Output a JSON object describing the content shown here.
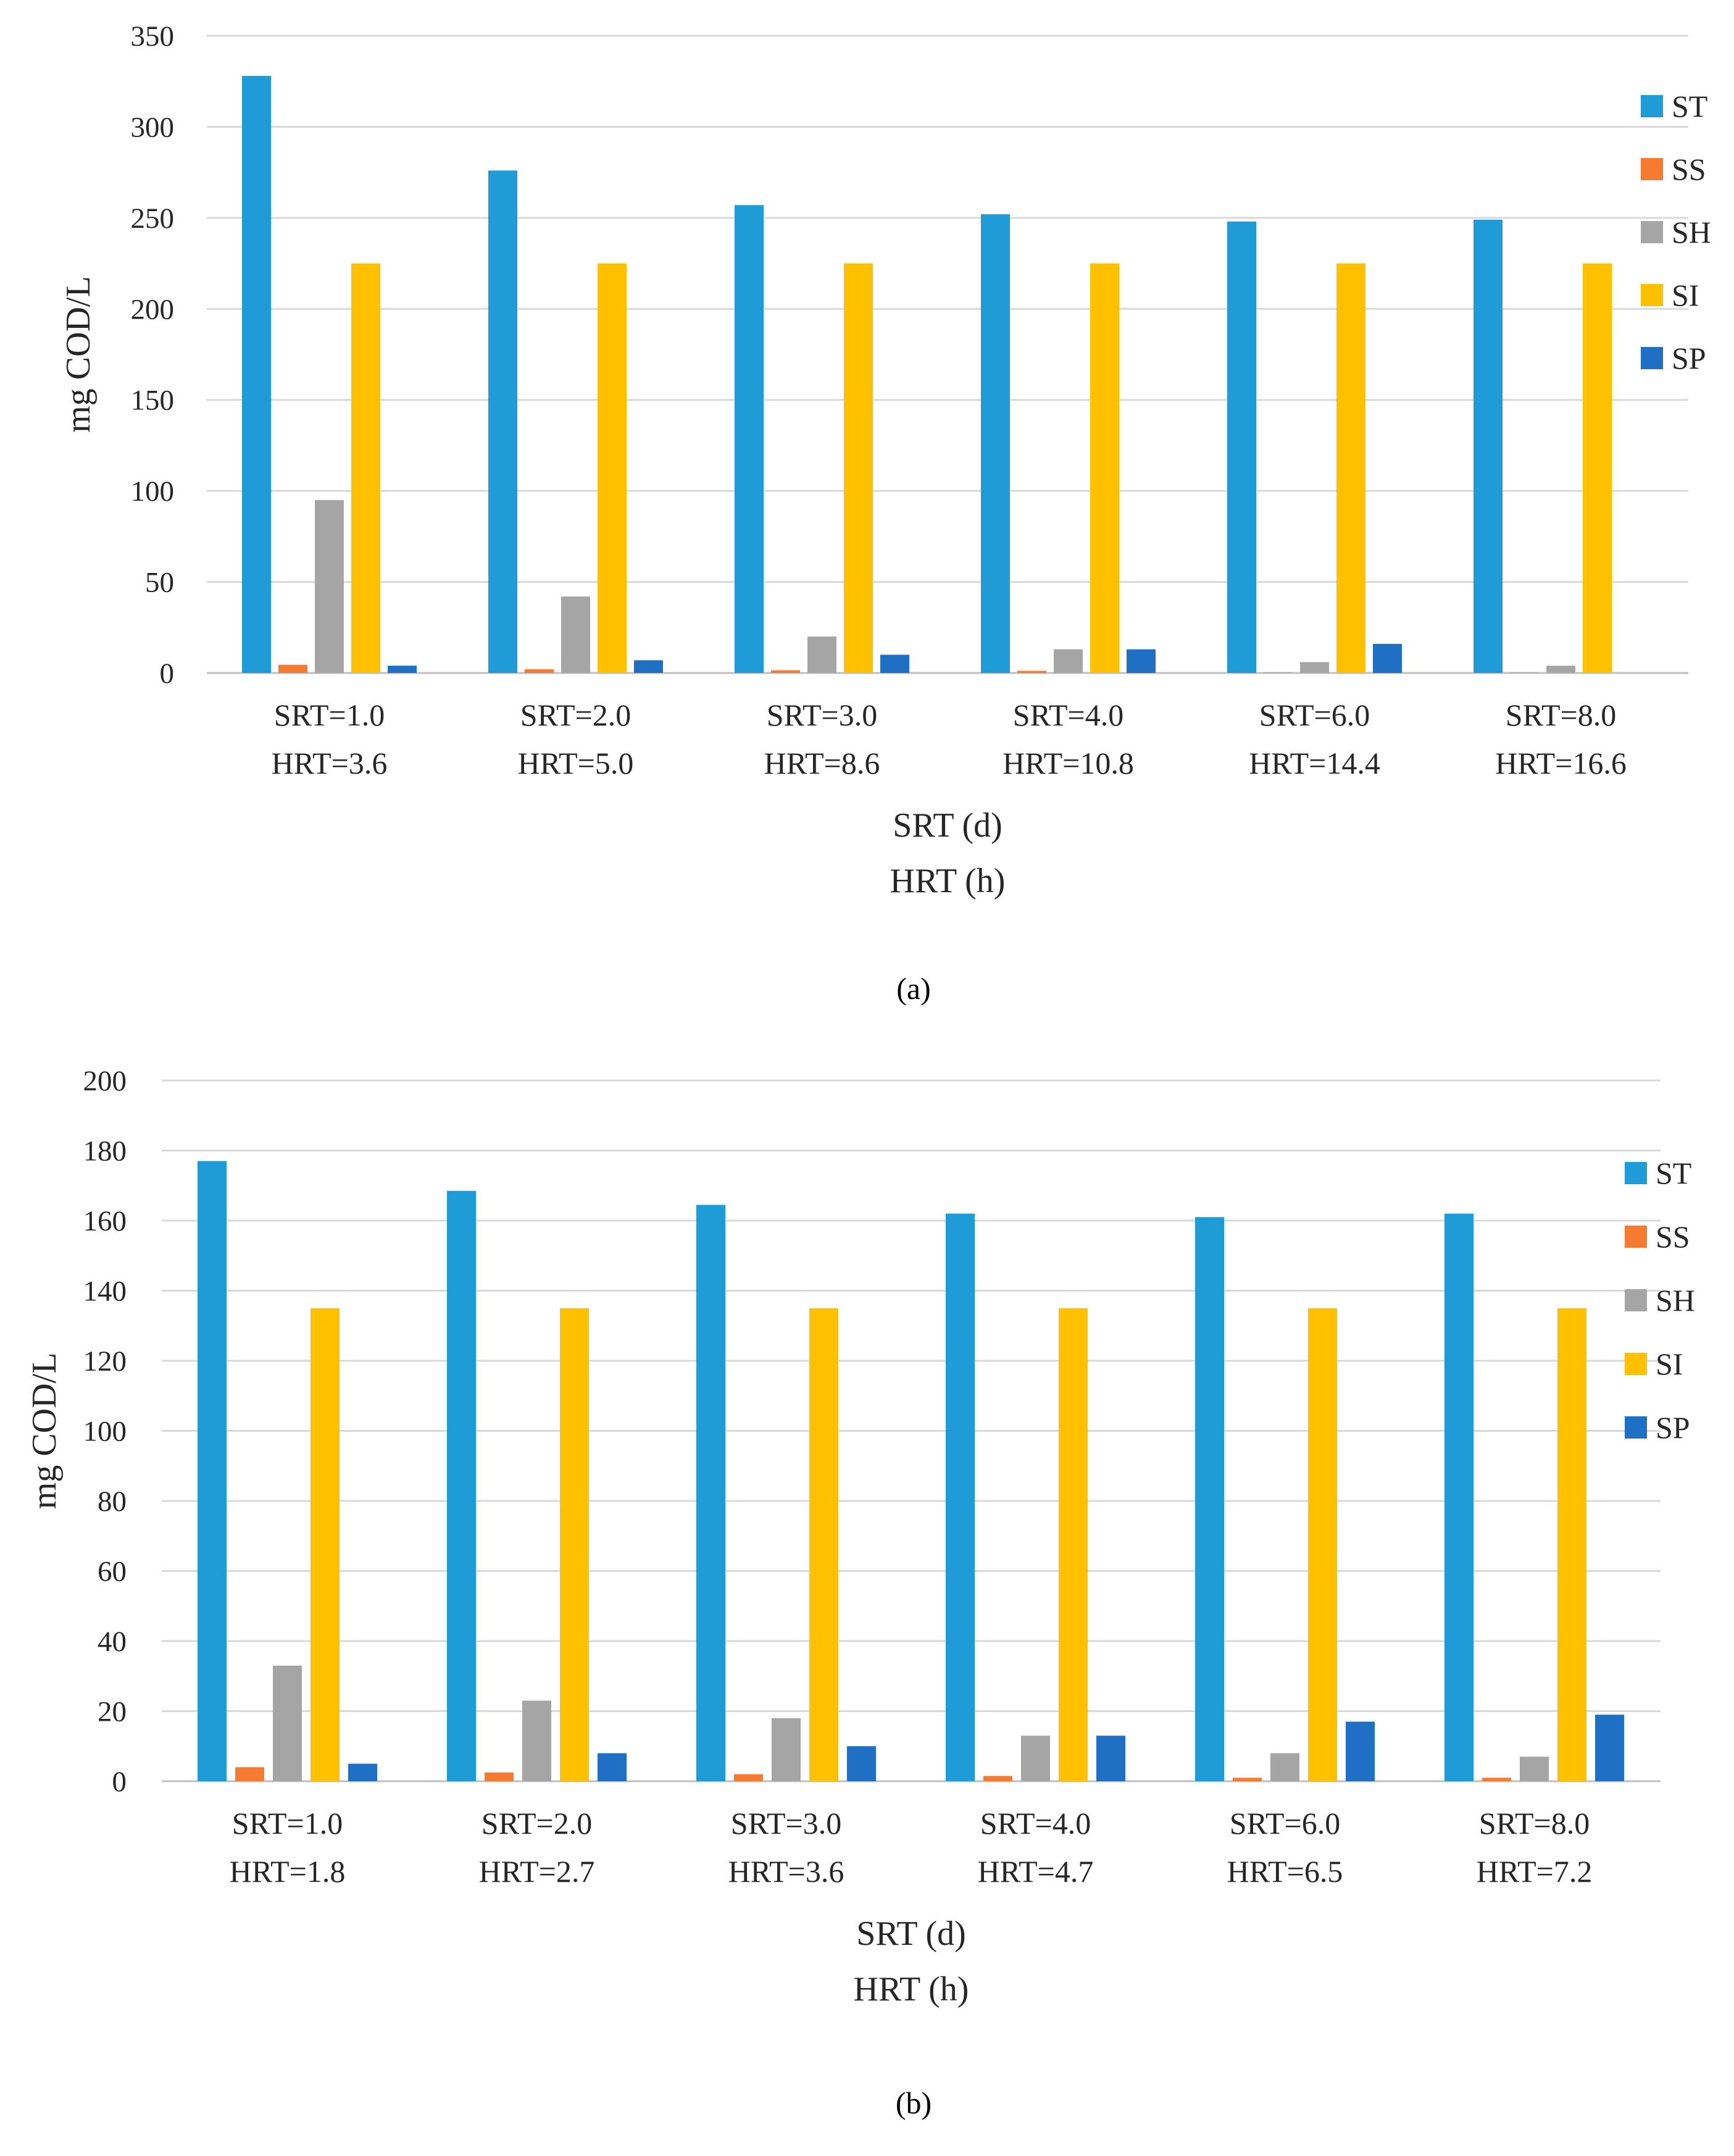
{
  "chart_data": [
    {
      "type": "bar",
      "caption": "(a)",
      "ylabel": "mg COD/L",
      "xlabel_lines": [
        "SRT (d)",
        "HRT (h)"
      ],
      "ylim": [
        0,
        350
      ],
      "yticks": [
        "0",
        "50",
        "100",
        "150",
        "200",
        "250",
        "300",
        "350"
      ],
      "ytick_values": [
        0,
        50,
        100,
        150,
        200,
        250,
        300,
        350
      ],
      "grid": true,
      "legend_position": "right",
      "categories": [
        [
          "SRT=1.0",
          "HRT=3.6"
        ],
        [
          "SRT=2.0",
          "HRT=5.0"
        ],
        [
          "SRT=3.0",
          "HRT=8.6"
        ],
        [
          "SRT=4.0",
          "HRT=10.8"
        ],
        [
          "SRT=6.0",
          "HRT=14.4"
        ],
        [
          "SRT=8.0",
          "HRT=16.6"
        ]
      ],
      "series": [
        {
          "name": "ST",
          "color": "#1f9bd7",
          "values": [
            328,
            276,
            257,
            252,
            248,
            249
          ]
        },
        {
          "name": "SS",
          "color": "#f47b30",
          "values": [
            4.5,
            2,
            1.5,
            1.2,
            0.3,
            0.2
          ]
        },
        {
          "name": "SH",
          "color": "#a5a5a5",
          "values": [
            95,
            42,
            20,
            13,
            6,
            4
          ]
        },
        {
          "name": "SI",
          "color": "#ffc000",
          "values": [
            225,
            225,
            225,
            225,
            225,
            225
          ]
        },
        {
          "name": "SP",
          "color": "#1f6fc5",
          "values": [
            4,
            7,
            10,
            13,
            16,
            0
          ]
        }
      ]
    },
    {
      "type": "bar",
      "caption": "(b)",
      "ylabel": "mg COD/L",
      "xlabel_lines": [
        "SRT (d)",
        "HRT (h)"
      ],
      "ylim": [
        0,
        200
      ],
      "yticks": [
        "0",
        "20",
        "40",
        "60",
        "80",
        "100",
        "120",
        "140",
        "160",
        "180",
        "200"
      ],
      "ytick_values": [
        0,
        20,
        40,
        60,
        80,
        100,
        120,
        140,
        160,
        180,
        200
      ],
      "grid": true,
      "legend_position": "right",
      "categories": [
        [
          "SRT=1.0",
          "HRT=1.8"
        ],
        [
          "SRT=2.0",
          "HRT=2.7"
        ],
        [
          "SRT=3.0",
          "HRT=3.6"
        ],
        [
          "SRT=4.0",
          "HRT=4.7"
        ],
        [
          "SRT=6.0",
          "HRT=6.5"
        ],
        [
          "SRT=8.0",
          "HRT=7.2"
        ]
      ],
      "series": [
        {
          "name": "ST",
          "color": "#1f9bd7",
          "values": [
            177,
            168.5,
            164.5,
            162,
            161,
            162
          ]
        },
        {
          "name": "SS",
          "color": "#f47b30",
          "values": [
            4,
            2.5,
            2,
            1.5,
            1,
            1
          ]
        },
        {
          "name": "SH",
          "color": "#a5a5a5",
          "values": [
            33,
            23,
            18,
            13,
            8,
            7
          ]
        },
        {
          "name": "SI",
          "color": "#ffc000",
          "values": [
            135,
            135,
            135,
            135,
            135,
            135
          ]
        },
        {
          "name": "SP",
          "color": "#1f6fc5",
          "values": [
            5,
            8,
            10,
            13,
            17,
            19
          ]
        }
      ]
    }
  ]
}
